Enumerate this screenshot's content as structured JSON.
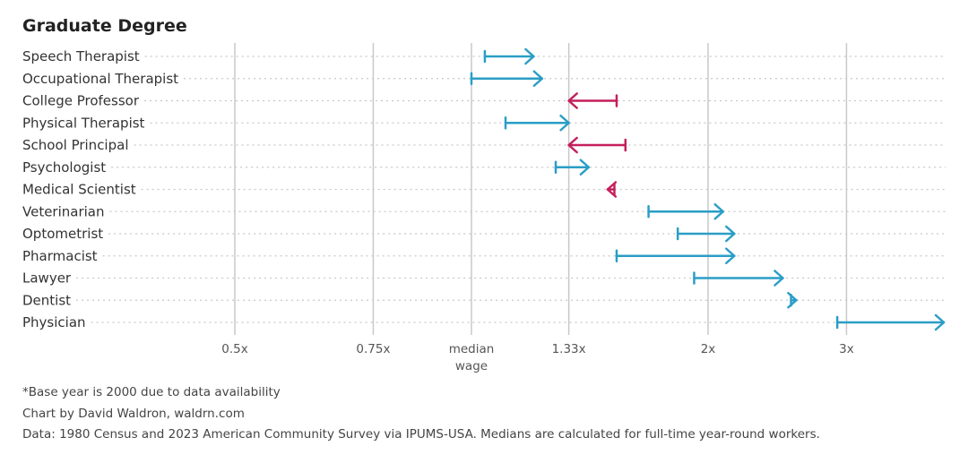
{
  "chart_data": {
    "type": "arrow-range",
    "title": "Graduate Degree",
    "xscale": "log2",
    "xlim": [
      0.5,
      4.0
    ],
    "xticks": [
      {
        "value": 0.5,
        "label": "0.5x"
      },
      {
        "value": 0.75,
        "label": "0.75x"
      },
      {
        "value": 1.0,
        "label": "median",
        "label2": "wage"
      },
      {
        "value": 1.33,
        "label": "1.33x"
      },
      {
        "value": 2.0,
        "label": "2x"
      },
      {
        "value": 3.0,
        "label": "3x"
      }
    ],
    "grid": true,
    "series": [
      {
        "name": "Speech Therapist",
        "start": 1.04,
        "end": 1.2
      },
      {
        "name": "Occupational Therapist",
        "start": 1.0,
        "end": 1.23
      },
      {
        "name": "College Professor",
        "start": 1.53,
        "end": 1.33
      },
      {
        "name": "Physical Therapist",
        "start": 1.105,
        "end": 1.33
      },
      {
        "name": "School Principal",
        "start": 1.57,
        "end": 1.33
      },
      {
        "name": "Psychologist",
        "start": 1.28,
        "end": 1.41
      },
      {
        "name": "Medical Scientist",
        "start": 1.52,
        "end": 1.49
      },
      {
        "name": "Veterinarian",
        "start": 1.68,
        "end": 2.09
      },
      {
        "name": "Optometrist",
        "start": 1.83,
        "end": 2.16
      },
      {
        "name": "Pharmacist",
        "start": 1.53,
        "end": 2.16
      },
      {
        "name": "Lawyer",
        "start": 1.92,
        "end": 2.49
      },
      {
        "name": "Dentist",
        "start": 2.55,
        "end": 2.59
      },
      {
        "name": "Physician",
        "start": 2.92,
        "end": 3.99
      }
    ],
    "colors": {
      "increase": "#2a9ec6",
      "decrease": "#c41f5c",
      "grid": "#c8c8c8",
      "dots": "#c8c8c8"
    }
  },
  "notes": [
    "*Base year is 2000 due to data availability",
    "Chart by David Waldron, waldrn.com",
    "Data: 1980 Census and 2023 American Community Survey via IPUMS-USA. Medians are calculated for full-time year-round workers."
  ]
}
